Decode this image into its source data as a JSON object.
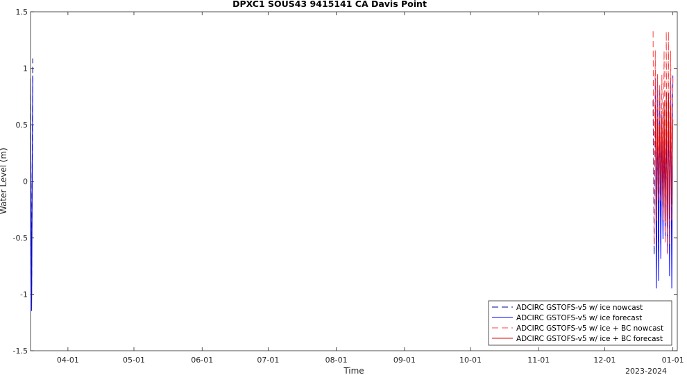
{
  "chart_data": {
    "type": "line",
    "title": "DPXC1 SOUS43 9415141 CA Davis Point",
    "xlabel": "Time",
    "ylabel": "Water Level (m)",
    "x_secondary_label": "2023-2024",
    "ylim": [
      -1.5,
      1.5
    ],
    "yticks": [
      -1.5,
      -1,
      -0.5,
      0,
      0.5,
      1,
      1.5
    ],
    "ytick_labels": [
      "-1.5",
      "-1",
      "-0.5",
      "0",
      "0.5",
      "1",
      "1.5"
    ],
    "xlim": [
      "2023-03-15",
      "2024-01-03"
    ],
    "xticks": [
      "2023-04-01",
      "2023-05-01",
      "2023-06-01",
      "2023-07-01",
      "2023-08-01",
      "2023-09-01",
      "2023-10-01",
      "2023-11-01",
      "2023-12-01",
      "2024-01-01"
    ],
    "xtick_labels": [
      "04-01",
      "05-01",
      "06-01",
      "07-01",
      "08-01",
      "09-01",
      "10-01",
      "11-01",
      "12-01",
      "01-01"
    ],
    "grid": false,
    "legend_position": "bottom-right",
    "series": [
      {
        "name": "ADCIRC GSTOFS-v5 w/ ice nowcast",
        "color": "#00008b",
        "dash": "dashed",
        "segments": [
          {
            "start": "2023-03-15",
            "end": "2023-03-16",
            "points_per_day": 2,
            "mean": -0.02,
            "amplitude": 1.17
          },
          {
            "start": "2023-12-23",
            "end": "2023-12-30",
            "points_per_day": 2,
            "mean": 0.08,
            "amplitude": 0.85
          }
        ]
      },
      {
        "name": "ADCIRC GSTOFS-v5 w/ ice forecast",
        "color": "#0000ff",
        "dash": "solid",
        "segments": [
          {
            "start": "2023-03-15",
            "end": "2023-03-16",
            "points_per_day": 2,
            "mean": -0.1,
            "amplitude": 1.05
          },
          {
            "start": "2023-12-24",
            "end": "2024-01-01",
            "points_per_day": 2,
            "mean": 0.0,
            "amplitude": 0.95
          }
        ]
      },
      {
        "name": "ADCIRC GSTOFS-v5 w/ ice + BC nowcast",
        "color": "#ff4040",
        "dash": "dashed",
        "segments": [
          {
            "start": "2023-12-23",
            "end": "2024-01-01",
            "points_per_day": 2,
            "mean": 0.35,
            "amplitude": 1.0
          }
        ]
      },
      {
        "name": "ADCIRC GSTOFS-v5 w/ ice + BC forecast",
        "color": "#e00000",
        "dash": "solid",
        "segments": [
          {
            "start": "2023-12-24",
            "end": "2024-01-01",
            "points_per_day": 2,
            "mean": 0.2,
            "amplitude": 0.6
          }
        ]
      }
    ]
  }
}
